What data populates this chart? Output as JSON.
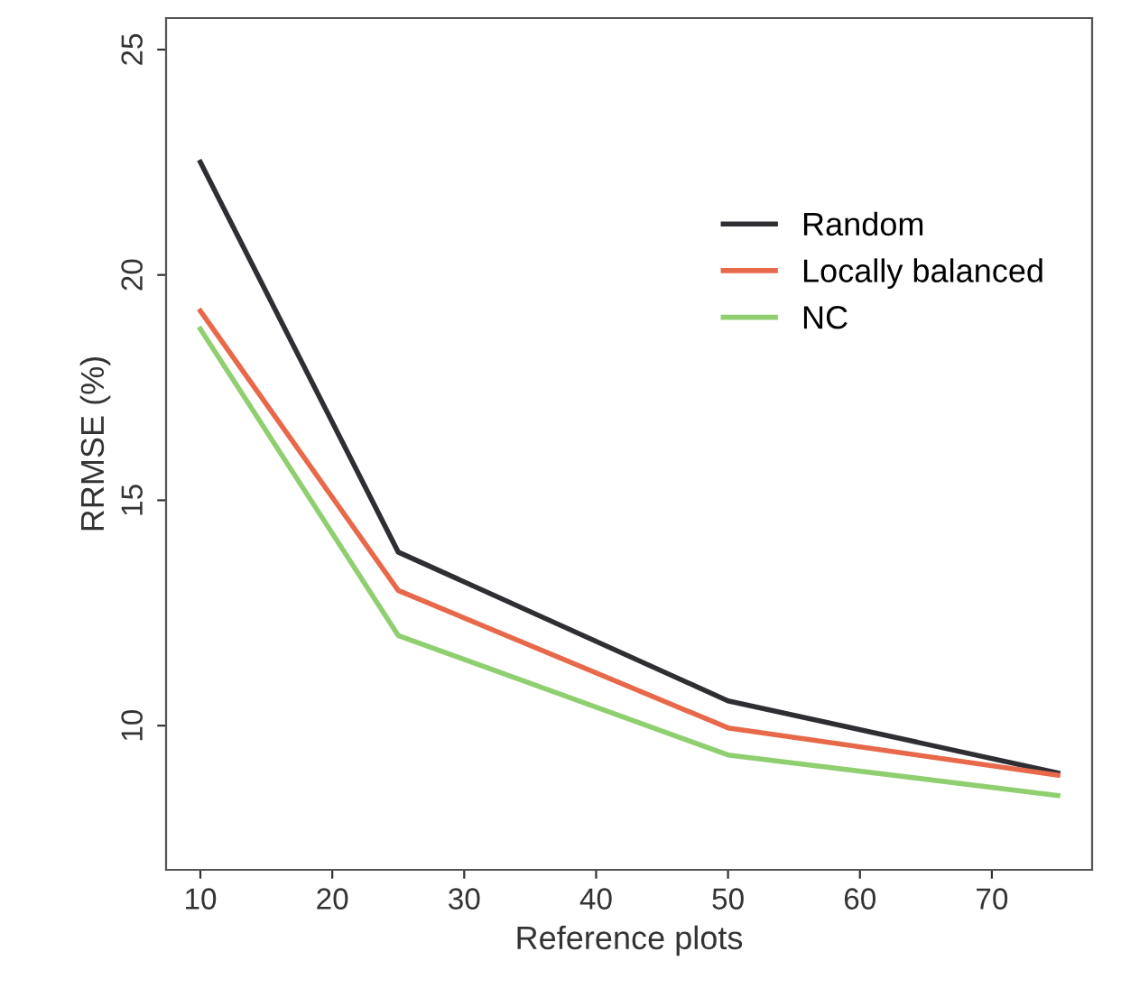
{
  "chart_data": {
    "type": "line",
    "xlabel": "Reference plots",
    "ylabel": "RRMSE (%)",
    "x": [
      10,
      25,
      50,
      75
    ],
    "series": [
      {
        "name": "Random",
        "color": "#2e2e33",
        "values": [
          22.5,
          13.85,
          10.55,
          8.95
        ]
      },
      {
        "name": "Locally balanced",
        "color": "#e8684a",
        "values": [
          19.2,
          13.0,
          9.95,
          8.9
        ]
      },
      {
        "name": "NC",
        "color": "#8fcf70",
        "values": [
          18.8,
          12.0,
          9.35,
          8.45
        ]
      }
    ],
    "xlim": [
      7.4,
      77.6
    ],
    "xticks": [
      10,
      20,
      30,
      40,
      50,
      60,
      70
    ],
    "ylim": [
      6.8,
      25.7
    ],
    "yticks": [
      10,
      15,
      20,
      25
    ],
    "grid": false,
    "legend": "right",
    "marker": "none",
    "line_style": "solid"
  }
}
